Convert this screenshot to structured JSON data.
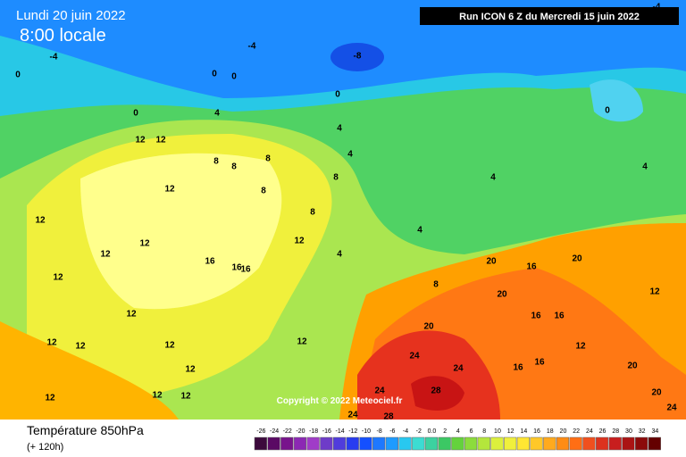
{
  "header": {
    "date": "Lundi 20 juin 2022",
    "time": "8:00 locale",
    "run": "Run ICON 6 Z du Mercredi 15 juin 2022"
  },
  "copyright": "Copyright © 2022 Meteociel.fr",
  "footer": {
    "title": "Température 850hPa",
    "lead": "(+ 120h)"
  },
  "scale": {
    "labels": [
      "-26",
      "-24",
      "-22",
      "-20",
      "-18",
      "-16",
      "-14",
      "-12",
      "-10",
      "-8",
      "-6",
      "-4",
      "-2",
      "0.0",
      "2",
      "4",
      "6",
      "8",
      "10",
      "12",
      "14",
      "16",
      "18",
      "20",
      "22",
      "24",
      "26",
      "28",
      "30",
      "32",
      "34"
    ]
  },
  "map": {
    "labels": [
      "-4",
      "-4",
      "-8",
      "-4",
      "0",
      "0",
      "0",
      "0",
      "0",
      "4",
      "0",
      "4",
      "12",
      "12",
      "8",
      "8",
      "8",
      "12",
      "8",
      "8",
      "4",
      "4",
      "4",
      "4",
      "12",
      "12",
      "8",
      "12",
      "16",
      "16",
      "16",
      "12",
      "12",
      "12",
      "12",
      "12",
      "12",
      "12",
      "4",
      "8",
      "16",
      "20",
      "20",
      "12",
      "20",
      "16",
      "16",
      "16",
      "16",
      "12",
      "20",
      "24",
      "24",
      "24",
      "28",
      "28",
      "24",
      "20",
      "20",
      "24",
      "12",
      "12",
      "12",
      "12"
    ]
  }
}
